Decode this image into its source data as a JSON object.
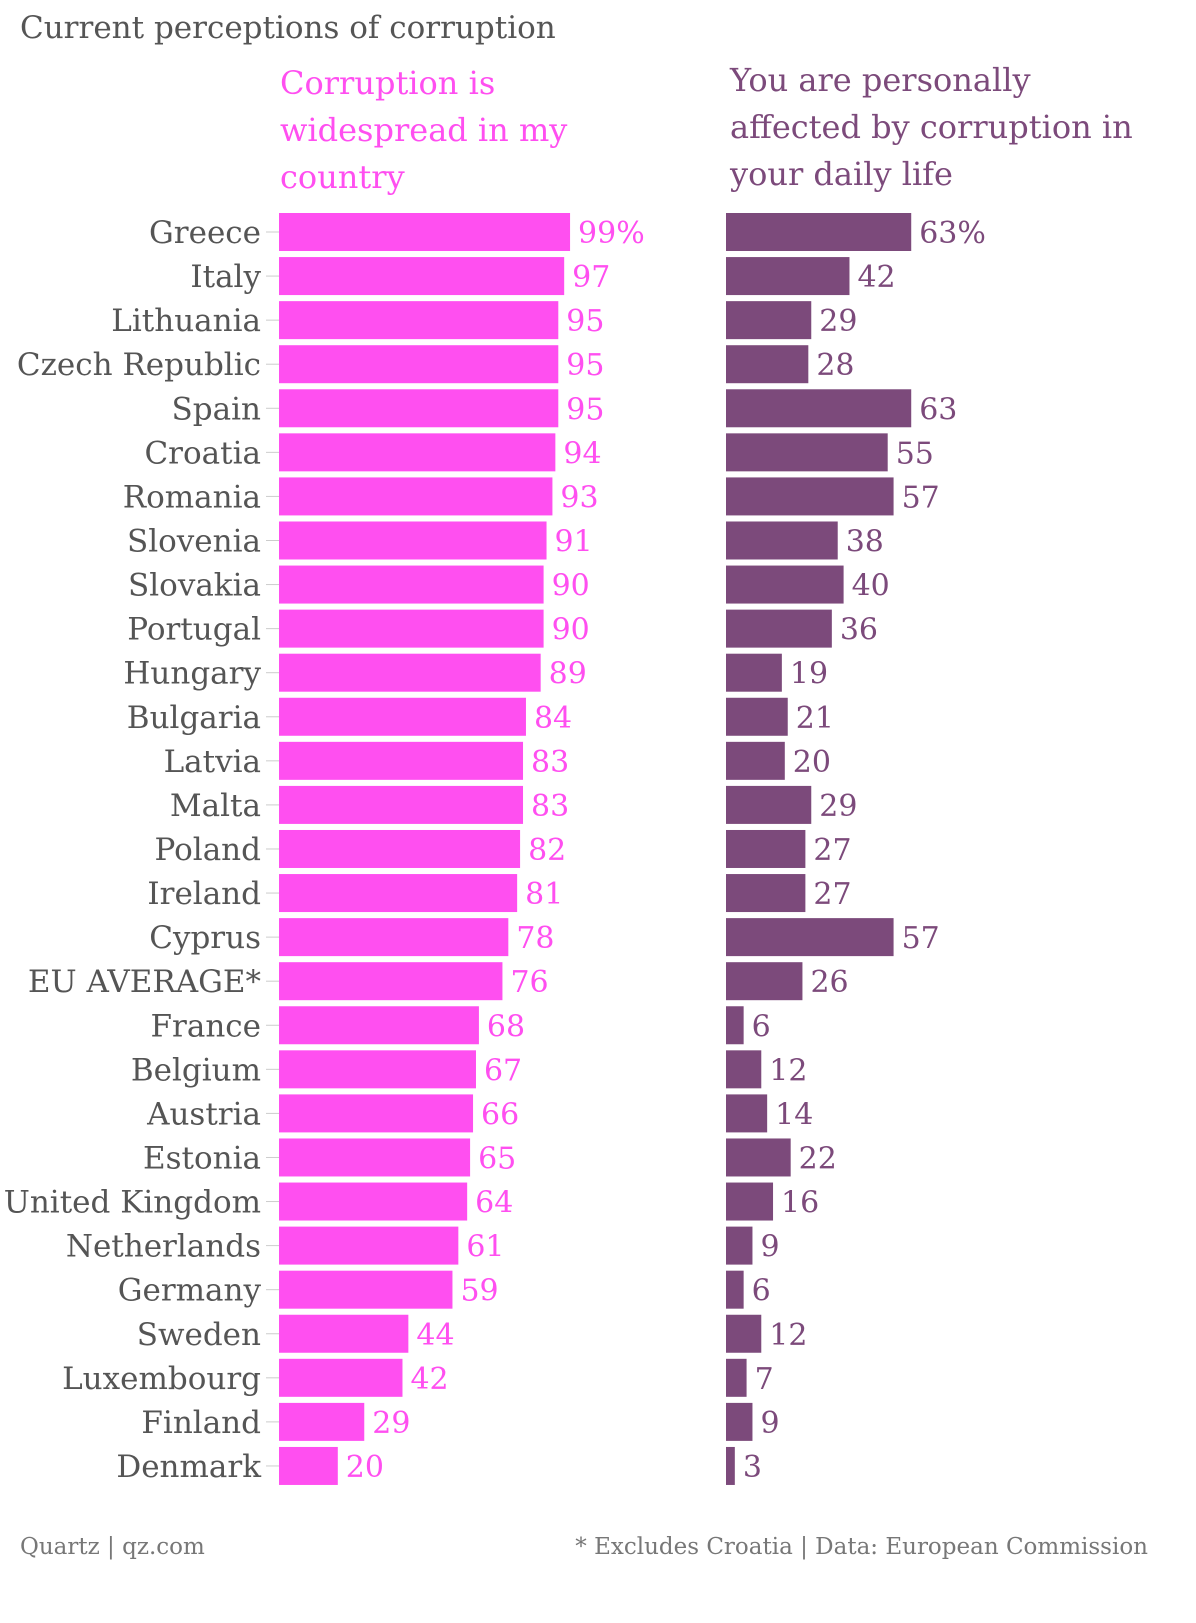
{
  "chart_data": {
    "type": "bar",
    "orientation": "horizontal",
    "title": "Current perceptions of corruption",
    "categories": [
      "Greece",
      "Italy",
      "Lithuania",
      "Czech Republic",
      "Spain",
      "Croatia",
      "Romania",
      "Slovenia",
      "Slovakia",
      "Portugal",
      "Hungary",
      "Bulgaria",
      "Latvia",
      "Malta",
      "Poland",
      "Ireland",
      "Cyprus",
      "EU AVERAGE*",
      "France",
      "Belgium",
      "Austria",
      "Estonia",
      "United Kingdom",
      "Netherlands",
      "Germany",
      "Sweden",
      "Luxembourg",
      "Finland",
      "Denmark"
    ],
    "series": [
      {
        "name": "Corruption is widespread in my country",
        "color": "#ff4ff0",
        "values": [
          99,
          97,
          95,
          95,
          95,
          94,
          93,
          91,
          90,
          90,
          89,
          84,
          83,
          83,
          82,
          81,
          78,
          76,
          68,
          67,
          66,
          65,
          64,
          61,
          59,
          44,
          42,
          29,
          20
        ],
        "first_label_suffix": "%"
      },
      {
        "name": "You are personally affected by corruption in your daily life",
        "color": "#7c4a7b",
        "values": [
          63,
          42,
          29,
          28,
          63,
          55,
          57,
          38,
          40,
          36,
          19,
          21,
          20,
          29,
          27,
          27,
          57,
          26,
          6,
          12,
          14,
          22,
          16,
          9,
          6,
          12,
          7,
          9,
          3
        ],
        "first_label_suffix": "%"
      }
    ],
    "label_color": "#555555"
  },
  "footer": {
    "source": "Quartz | qz.com",
    "note": "* Excludes Croatia | Data: European Commission"
  }
}
